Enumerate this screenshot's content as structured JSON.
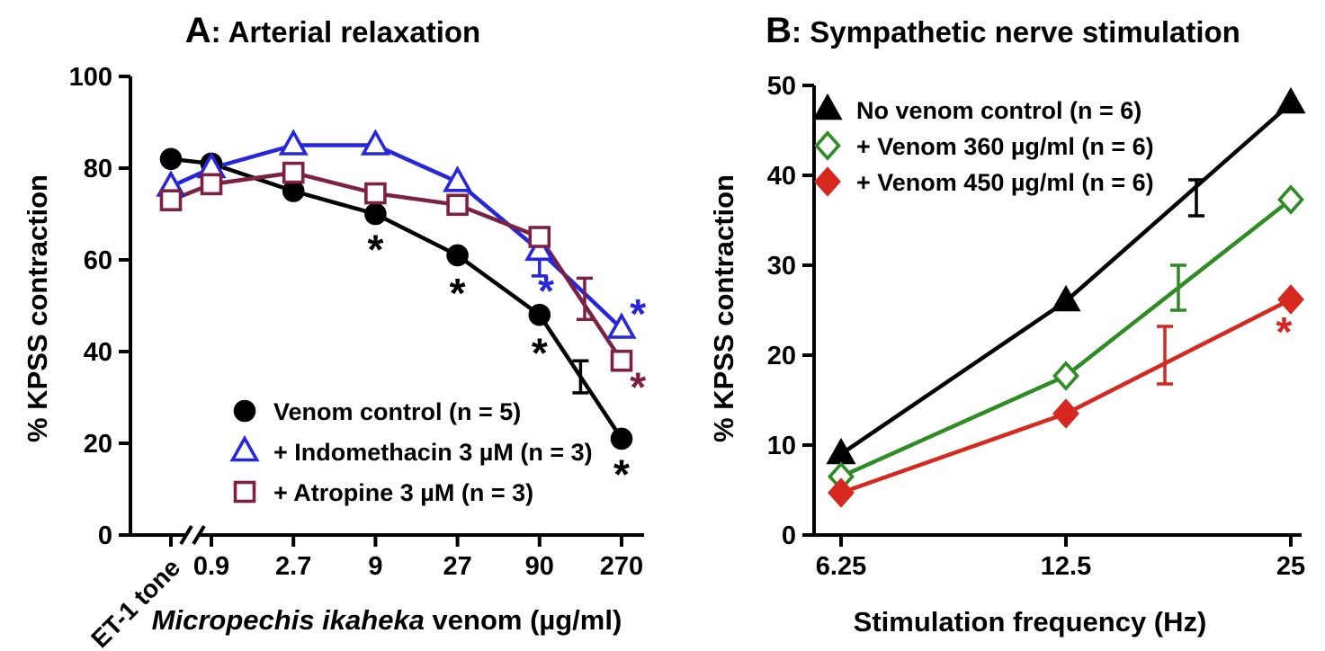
{
  "chart_data": [
    {
      "key": "A",
      "type": "line",
      "title_prefix": "A",
      "title_rest": ": Arterial relaxation",
      "ylabel": "% KPSS contraction",
      "xlabel_italic": "Micropechis ikaheka",
      "xlabel_plain": " venom (µg/ml)",
      "categories": [
        "ET-1 tone",
        "0.9",
        "2.7",
        "9",
        "27",
        "90",
        "270"
      ],
      "rotate_first_label": true,
      "axis_break_after_first": true,
      "ylim": [
        0,
        100
      ],
      "yticks": [
        0,
        20,
        40,
        60,
        80,
        100
      ],
      "legend_position": "inside-lower-left",
      "series": [
        {
          "name": "Venom control (n = 5)",
          "marker": "circle",
          "filled": true,
          "color": "#000000",
          "values": [
            82,
            81,
            75,
            70,
            61,
            48,
            21
          ]
        },
        {
          "name": "+ Indomethacin 3 µM (n = 3)",
          "marker": "triangle",
          "filled": false,
          "color": "#2626dd",
          "values": [
            76,
            80,
            85,
            85,
            77,
            62,
            45
          ]
        },
        {
          "name": "+ Atropine 3 µM (n = 3)",
          "marker": "square",
          "filled": false,
          "color": "#7c2144",
          "values": [
            73,
            76.5,
            79,
            74.5,
            72,
            65,
            38
          ]
        }
      ],
      "error_bars": [
        {
          "x": 5.5,
          "y": 34.5,
          "half": 3.5,
          "color": "#000000"
        },
        {
          "x": 5.55,
          "y": 51.5,
          "half": 4.5,
          "color": "#7c2144"
        },
        {
          "x": 5.0,
          "y": 60.5,
          "half": 4.0,
          "color": "#2626dd"
        }
      ],
      "annotations": [
        {
          "x": 3.0,
          "y": 63.0,
          "text": "*",
          "color": "#000000"
        },
        {
          "x": 4.0,
          "y": 53.5,
          "text": "*",
          "color": "#000000"
        },
        {
          "x": 5.0,
          "y": 40.5,
          "text": "*",
          "color": "#000000"
        },
        {
          "x": 6.0,
          "y": 14.0,
          "text": "*",
          "color": "#000000"
        },
        {
          "x": 5.08,
          "y": 54.0,
          "text": "*",
          "color": "#2626dd"
        },
        {
          "x": 6.2,
          "y": 49.0,
          "text": "*",
          "color": "#2626dd"
        },
        {
          "x": 6.2,
          "y": 33.0,
          "text": "*",
          "color": "#7c2144"
        }
      ]
    },
    {
      "key": "B",
      "type": "line",
      "title_prefix": "B",
      "title_rest": ": Sympathetic nerve stimulation",
      "ylabel": "% KPSS contraction",
      "xlabel_italic": "",
      "xlabel_plain": "Stimulation frequency (Hz)",
      "categories": [
        "6.25",
        "12.5",
        "25"
      ],
      "rotate_first_label": false,
      "axis_break_after_first": false,
      "ylim": [
        0,
        50
      ],
      "yticks": [
        0,
        10,
        20,
        30,
        40,
        50
      ],
      "legend_position": "inside-upper-left",
      "series": [
        {
          "name": "No venom control (n = 6)",
          "marker": "triangle",
          "filled": true,
          "color": "#000000",
          "values": [
            9,
            26,
            48
          ]
        },
        {
          "name": "+ Venom 360 µg/ml (n = 6)",
          "marker": "diamond",
          "filled": false,
          "color": "#2f8b24",
          "values": [
            6.5,
            17.7,
            37.3
          ]
        },
        {
          "name": "+ Venom 450 µg/ml (n = 6)",
          "marker": "diamond",
          "filled": true,
          "color": "#d6281e",
          "values": [
            4.7,
            13.5,
            26.2
          ]
        }
      ],
      "error_bars": [
        {
          "x": 1.58,
          "y": 37.5,
          "half": 2.0,
          "color": "#000000"
        },
        {
          "x": 1.5,
          "y": 27.5,
          "half": 2.5,
          "color": "#2f8b24"
        },
        {
          "x": 1.44,
          "y": 20.0,
          "half": 3.2,
          "color": "#d6281e"
        }
      ],
      "annotations": [
        {
          "x": 1.97,
          "y": 23.0,
          "text": "*",
          "color": "#d6281e"
        }
      ]
    }
  ]
}
